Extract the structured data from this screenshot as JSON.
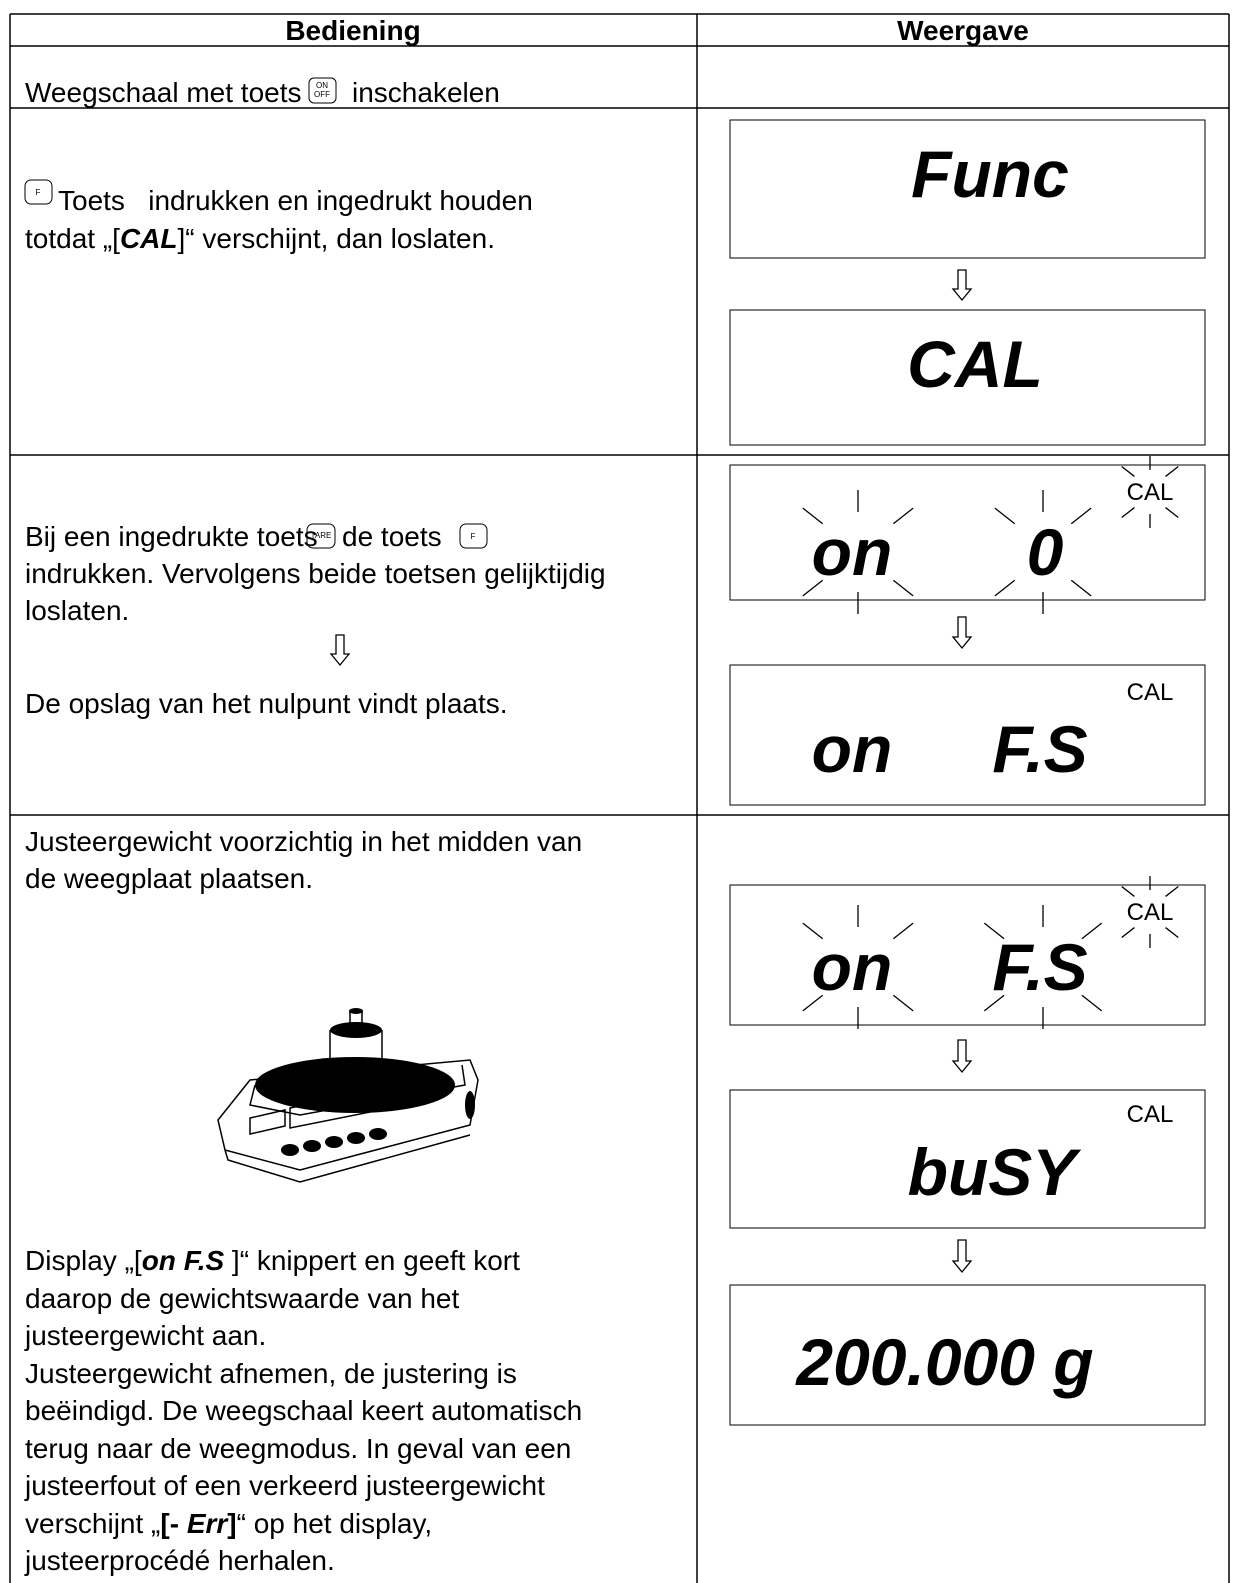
{
  "header": [
    "Bediening",
    "Weergave"
  ],
  "keys": {
    "on_off": [
      "ON",
      "OFF"
    ],
    "f": "F",
    "tare": "TARE"
  },
  "rows": [
    {
      "instruction": [
        [
          "Weegschaal met toets",
          "inschakelen"
        ]
      ]
    },
    {
      "instruction": [
        [
          "Toets   indrukken en ingedrukt houden"
        ],
        [
          "totdat „[",
          "CAL",
          "]“ verschijnt, dan loslaten."
        ]
      ],
      "display": [
        {
          "main": [
            "Func"
          ]
        },
        {
          "main": [
            "CAL"
          ]
        }
      ]
    },
    {
      "instruction": [
        [
          "Bij een ingedrukte toets",
          "de toets"
        ],
        [
          "indrukken. Vervolgens beide toetsen gelijktijdig"
        ],
        [
          "loslaten."
        ],
        [
          "De opslag van het nulpunt vindt plaats."
        ]
      ],
      "display": [
        {
          "main": [
            "on",
            "0"
          ],
          "indicator": "CAL"
        },
        {
          "main": [
            "on",
            "F.S"
          ],
          "indicator": "CAL"
        }
      ]
    },
    {
      "instruction": [
        [
          "Justeergewicht voorzichtig in het midden van"
        ],
        [
          "de weegplaat plaatsen."
        ],
        [
          "Display „[",
          "on F.S",
          " ]“ knippert en geeft kort"
        ],
        [
          "daarop de gewichtswaarde van het"
        ],
        [
          "justeergewicht aan."
        ],
        [
          "Justeergewicht afnemen, de justering is"
        ],
        [
          "beëindigd. De weegschaal keert automatisch"
        ],
        [
          "terug naar de weegmodus. In geval van een"
        ],
        [
          "justeerfout of een verkeerd justeergewicht"
        ],
        [
          "verschijnt „",
          "[- ",
          "Err",
          "]",
          "“ op het display,"
        ],
        [
          "justeerprocédé herhalen."
        ]
      ],
      "display": [
        {
          "main": [
            "on",
            "F.S"
          ],
          "indicator": "CAL"
        },
        {
          "main": [
            "buSY"
          ],
          "indicator": "CAL"
        },
        {
          "main": [
            "200.000 g"
          ]
        }
      ]
    }
  ]
}
